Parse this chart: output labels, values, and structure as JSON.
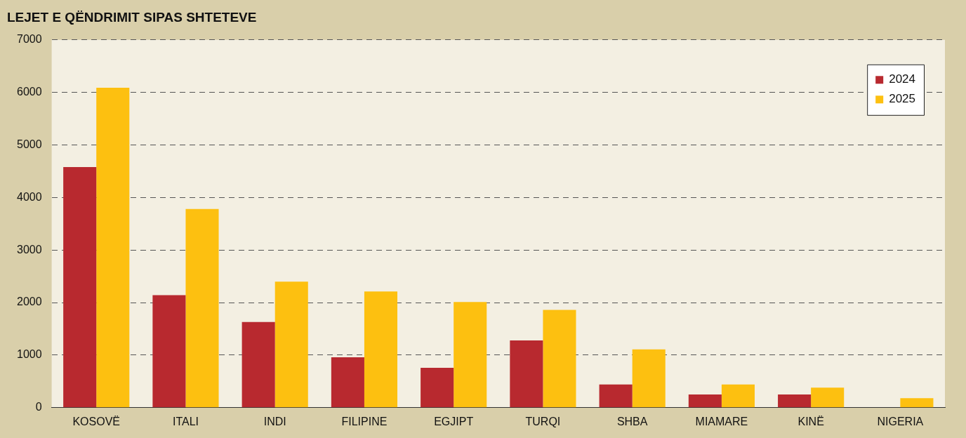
{
  "chart_data": {
    "type": "bar",
    "title": "LEJET E QËNDRIMIT SIPAS SHTETEVE",
    "categories": [
      "KOSOVË",
      "ITALI",
      "INDI",
      "FILIPINE",
      "EGJIPT",
      "TURQI",
      "SHBA",
      "MIAMARE",
      "KINË",
      "NIGERIA"
    ],
    "series": [
      {
        "name": "2024",
        "color": "#b8292f",
        "values": [
          4580,
          2140,
          1630,
          960,
          760,
          1280,
          440,
          250,
          250,
          null
        ]
      },
      {
        "name": "2025",
        "color": "#fdc010",
        "values": [
          6090,
          3780,
          2400,
          2210,
          2010,
          1860,
          1110,
          440,
          380,
          180
        ]
      }
    ],
    "ylim": [
      0,
      7000
    ],
    "yticks": [
      0,
      1000,
      2000,
      3000,
      4000,
      5000,
      6000,
      7000
    ],
    "grid": "y",
    "legend": "top right"
  }
}
